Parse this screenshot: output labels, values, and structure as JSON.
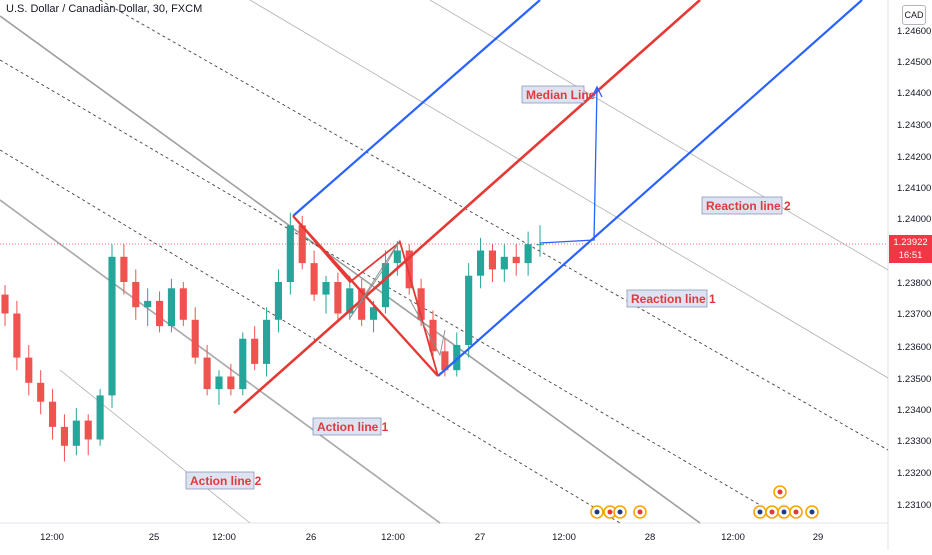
{
  "header": {
    "title": "U.S. Dollar / Canadian Dollar, 30, FXCM",
    "currency": "CAD"
  },
  "price_tag": {
    "price": "1.23922",
    "countdown": "16:51"
  },
  "colors": {
    "median": "#e53935",
    "reaction": "#2962ff",
    "gray": "#9e9e9e",
    "up": "#26a69a",
    "down": "#ef5350",
    "price_tag": "#f23645",
    "annotation_text": "#e03a3e",
    "annotation_bg": "#dde3f0"
  },
  "chart_data": {
    "type": "candlestick",
    "title": "U.S. Dollar / Canadian Dollar, 30, FXCM",
    "ylim": [
      1.2303,
      1.2466
    ],
    "y_ticks": [
      "1.24600",
      "1.24500",
      "1.24400",
      "1.24300",
      "1.24200",
      "1.24100",
      "1.24000",
      "1.23800",
      "1.23700",
      "1.23600",
      "1.23500",
      "1.23400",
      "1.23300",
      "1.23200",
      "1.23100"
    ],
    "x_ticks": [
      "12:00",
      "25",
      "12:00",
      "26",
      "12:00",
      "27",
      "12:00",
      "28",
      "12:00",
      "29"
    ],
    "last_price": 1.23922,
    "annotations": [
      "Median Line",
      "Reaction line 2",
      "Reaction line 1",
      "Action line 1",
      "Action line 2"
    ],
    "pitchfork": {
      "pivot_a": 1.2401,
      "pivot_b": 1.2339,
      "pivot_c": 1.235
    },
    "candles": [
      [
        1.2376,
        1.2379,
        1.2366,
        1.237
      ],
      [
        1.237,
        1.2374,
        1.2352,
        1.2356
      ],
      [
        1.2356,
        1.236,
        1.2344,
        1.2348
      ],
      [
        1.2348,
        1.2352,
        1.2338,
        1.2342
      ],
      [
        1.2342,
        1.2346,
        1.233,
        1.2334
      ],
      [
        1.2334,
        1.2338,
        1.2323,
        1.2328
      ],
      [
        1.2328,
        1.234,
        1.2325,
        1.2336
      ],
      [
        1.2336,
        1.2338,
        1.2325,
        1.233
      ],
      [
        1.233,
        1.2346,
        1.2328,
        1.2344
      ],
      [
        1.2344,
        1.2392,
        1.234,
        1.2388
      ],
      [
        1.2388,
        1.2392,
        1.2376,
        1.238
      ],
      [
        1.238,
        1.2384,
        1.2368,
        1.2372
      ],
      [
        1.2372,
        1.2378,
        1.2366,
        1.2374
      ],
      [
        1.2374,
        1.2377,
        1.2364,
        1.2366
      ],
      [
        1.2366,
        1.2381,
        1.2364,
        1.2378
      ],
      [
        1.2378,
        1.238,
        1.2366,
        1.2368
      ],
      [
        1.2368,
        1.2372,
        1.2354,
        1.2356
      ],
      [
        1.2356,
        1.236,
        1.2344,
        1.2346
      ],
      [
        1.2346,
        1.2352,
        1.2341,
        1.235
      ],
      [
        1.235,
        1.2354,
        1.2344,
        1.2346
      ],
      [
        1.2346,
        1.2364,
        1.2344,
        1.2362
      ],
      [
        1.2362,
        1.2366,
        1.2352,
        1.2354
      ],
      [
        1.2354,
        1.2372,
        1.235,
        1.2368
      ],
      [
        1.2368,
        1.2384,
        1.2364,
        1.238
      ],
      [
        1.238,
        1.2402,
        1.2376,
        1.2398
      ],
      [
        1.2398,
        1.2401,
        1.2384,
        1.2386
      ],
      [
        1.2386,
        1.239,
        1.2374,
        1.2376
      ],
      [
        1.2376,
        1.2382,
        1.237,
        1.238
      ],
      [
        1.238,
        1.2383,
        1.2368,
        1.237
      ],
      [
        1.237,
        1.2382,
        1.2368,
        1.2378
      ],
      [
        1.2378,
        1.2381,
        1.2366,
        1.2368
      ],
      [
        1.2368,
        1.2374,
        1.2364,
        1.2372
      ],
      [
        1.2372,
        1.239,
        1.237,
        1.2386
      ],
      [
        1.2386,
        1.2393,
        1.2382,
        1.239
      ],
      [
        1.239,
        1.2392,
        1.2376,
        1.2378
      ],
      [
        1.2378,
        1.2381,
        1.2366,
        1.2368
      ],
      [
        1.2368,
        1.2371,
        1.2356,
        1.2358
      ],
      [
        1.2358,
        1.2362,
        1.235,
        1.2352
      ],
      [
        1.2352,
        1.2364,
        1.235,
        1.236
      ],
      [
        1.236,
        1.2386,
        1.2356,
        1.2382
      ],
      [
        1.2382,
        1.2394,
        1.2378,
        1.239
      ],
      [
        1.239,
        1.2392,
        1.238,
        1.2384
      ],
      [
        1.2384,
        1.2392,
        1.238,
        1.2388
      ],
      [
        1.2388,
        1.2392,
        1.2382,
        1.2386
      ],
      [
        1.2386,
        1.2396,
        1.2382,
        1.2392
      ],
      [
        1.2392,
        1.2398,
        1.2388,
        1.2392
      ]
    ]
  }
}
